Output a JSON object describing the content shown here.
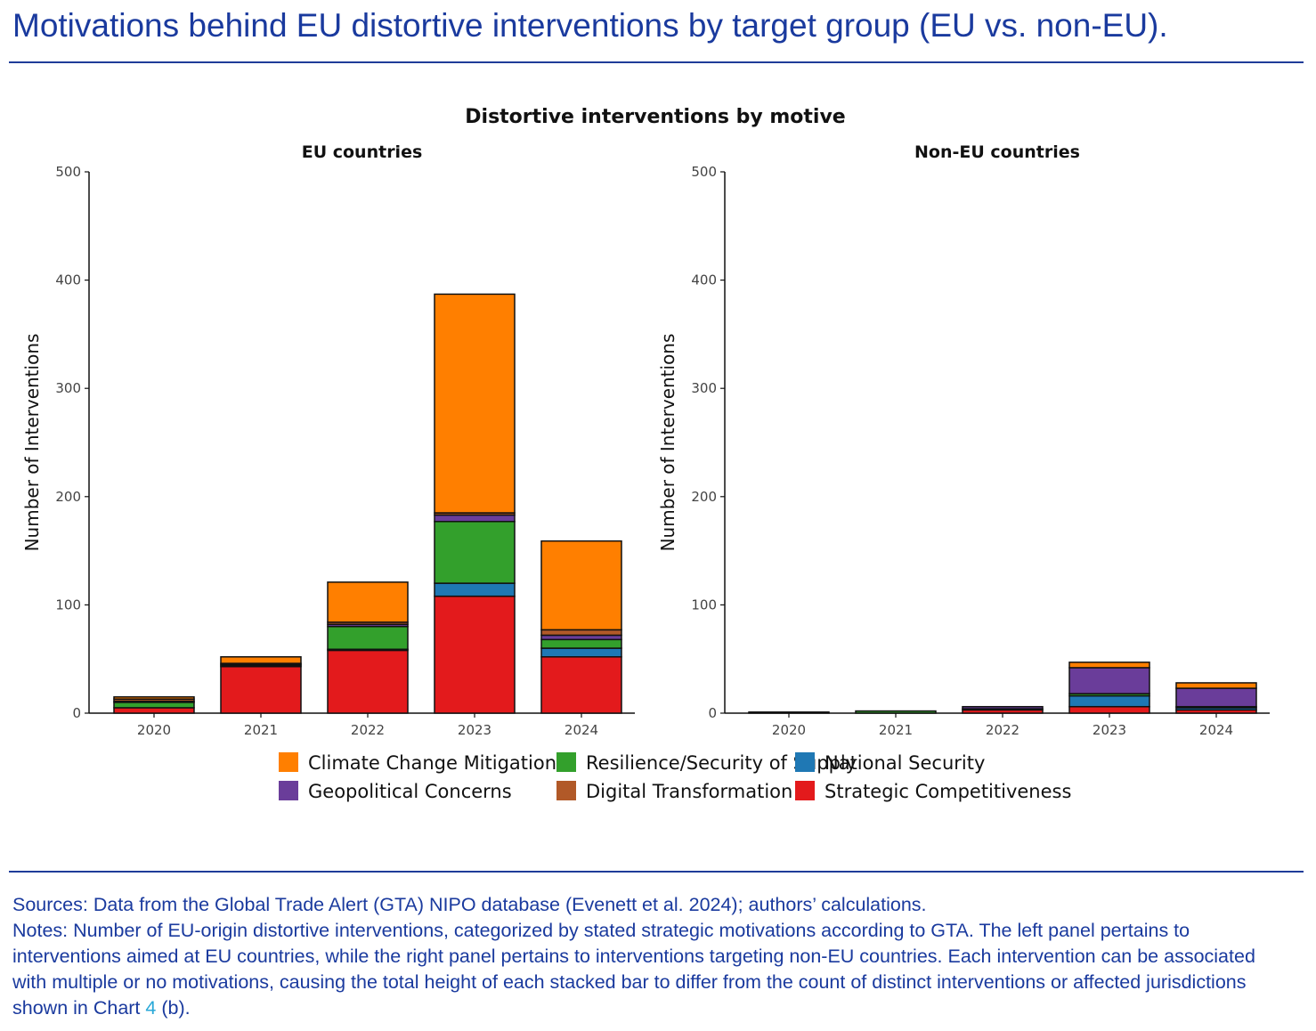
{
  "page": {
    "title": "Motivations behind EU distortive interventions by target group (EU vs. non-EU).",
    "sources": "Sources: Data from the Global Trade Alert (GTA) NIPO database (Evenett et al. 2024); authors’ calculations.",
    "notes_before": "Notes: Number of EU-origin distortive interventions, categorized by stated strategic motivations according to GTA. The left panel pertains to interventions aimed at EU countries, while the right panel pertains to interventions targeting non-EU countries. Each intervention can be associated with multiple or no motivations, causing the total height of each stacked bar to differ from the count of distinct interventions or affected jurisdictions shown in Chart ",
    "notes_ref": "4",
    "notes_after": " (b)."
  },
  "chart_data": {
    "type": "bar",
    "stacked": true,
    "title": "Distortive interventions by motive",
    "ylabel": "Number of Interventions",
    "ylim": [
      0,
      500
    ],
    "yticks": [
      0,
      100,
      200,
      300,
      400,
      500
    ],
    "categories": [
      "2020",
      "2021",
      "2022",
      "2023",
      "2024"
    ],
    "legend_position": "bottom",
    "legend_order": [
      "Climate Change Mitigation",
      "Geopolitical Concerns",
      "Resilience/Security of Supply",
      "Digital Transformation",
      "National Security",
      "Strategic Competitiveness"
    ],
    "colors": {
      "Strategic Competitiveness": "#e31a1c",
      "National Security": "#1f78b4",
      "Resilience/Security of Supply": "#33a02c",
      "Geopolitical Concerns": "#6a3d9a",
      "Digital Transformation": "#b15928",
      "Climate Change Mitigation": "#ff7f00"
    },
    "panels": [
      {
        "name": "EU countries",
        "series": [
          {
            "name": "Strategic Competitiveness",
            "values": [
              5,
              43,
              58,
              108,
              52
            ]
          },
          {
            "name": "National Security",
            "values": [
              0,
              1,
              1,
              12,
              8
            ]
          },
          {
            "name": "Resilience/Security of Supply",
            "values": [
              5,
              1,
              21,
              57,
              8
            ]
          },
          {
            "name": "Geopolitical Concerns",
            "values": [
              1,
              1,
              2,
              6,
              4
            ]
          },
          {
            "name": "Digital Transformation",
            "values": [
              2,
              0,
              2,
              2,
              5
            ]
          },
          {
            "name": "Climate Change Mitigation",
            "values": [
              2,
              6,
              37,
              202,
              82
            ]
          }
        ]
      },
      {
        "name": "Non-EU countries",
        "series": [
          {
            "name": "Strategic Competitiveness",
            "values": [
              0,
              0,
              3,
              6,
              3
            ]
          },
          {
            "name": "National Security",
            "values": [
              0,
              0,
              1,
              10,
              2
            ]
          },
          {
            "name": "Resilience/Security of Supply",
            "values": [
              1,
              2,
              0,
              2,
              1
            ]
          },
          {
            "name": "Geopolitical Concerns",
            "values": [
              0,
              0,
              2,
              24,
              17
            ]
          },
          {
            "name": "Digital Transformation",
            "values": [
              0,
              0,
              0,
              0,
              0
            ]
          },
          {
            "name": "Climate Change Mitigation",
            "values": [
              0,
              0,
              0,
              5,
              5
            ]
          }
        ]
      }
    ]
  }
}
